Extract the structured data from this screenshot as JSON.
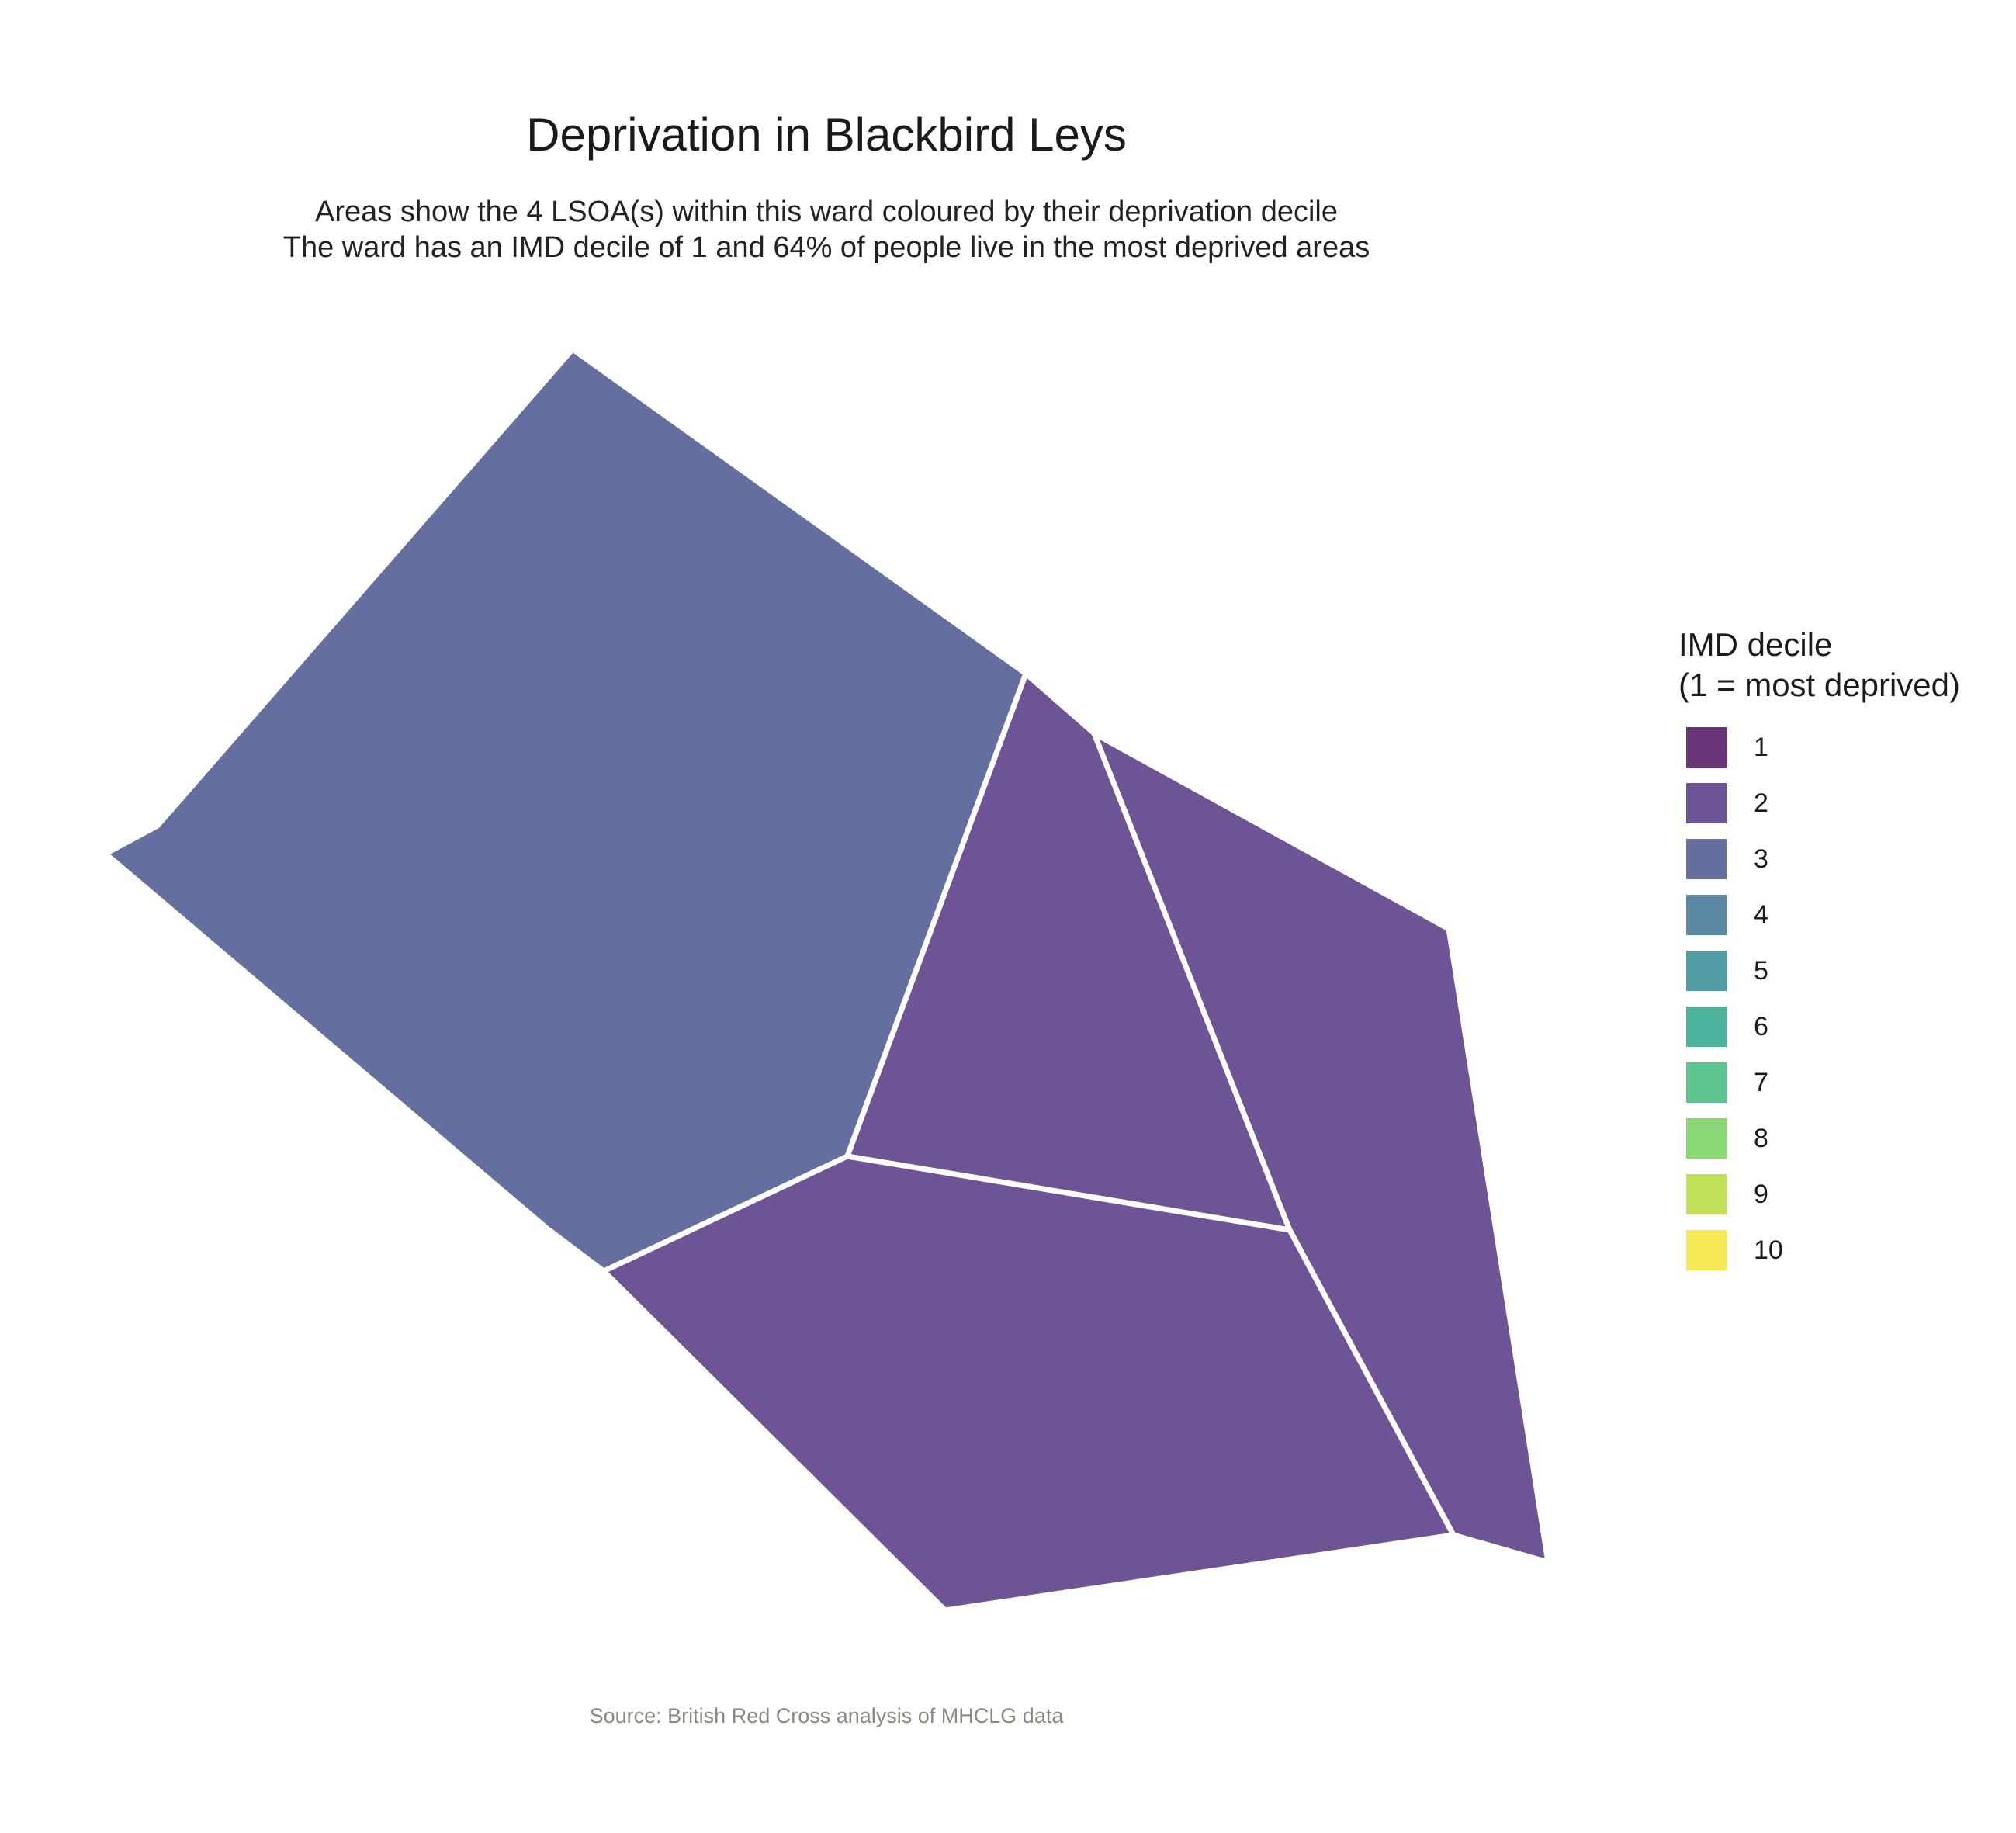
{
  "title": "Deprivation in Blackbird Leys",
  "subtitle_line1": "Areas show the 4 LSOA(s) within this ward coloured by their deprivation decile",
  "subtitle_line2": "The ward has an IMD decile of 1 and 64% of people live in the most deprived areas",
  "caption": "Source: British Red Cross analysis of MHCLG data",
  "legend": {
    "title_line1": "IMD decile",
    "title_line2": "(1 = most deprived)",
    "items": [
      {
        "label": "1",
        "color": "#6B3579"
      },
      {
        "label": "2",
        "color": "#6E5494"
      },
      {
        "label": "3",
        "color": "#656F9F"
      },
      {
        "label": "4",
        "color": "#5B88A5"
      },
      {
        "label": "5",
        "color": "#519DA5"
      },
      {
        "label": "6",
        "color": "#4CB49C"
      },
      {
        "label": "7",
        "color": "#5CC68E"
      },
      {
        "label": "8",
        "color": "#8CD775"
      },
      {
        "label": "9",
        "color": "#C3E05B"
      },
      {
        "label": "10",
        "color": "#F9E855"
      }
    ]
  },
  "areas": [
    {
      "name": "lsoa-northwest",
      "decile": 3
    },
    {
      "name": "lsoa-central",
      "decile": 2
    },
    {
      "name": "lsoa-east",
      "decile": 2
    },
    {
      "name": "lsoa-south",
      "decile": 2
    }
  ]
}
